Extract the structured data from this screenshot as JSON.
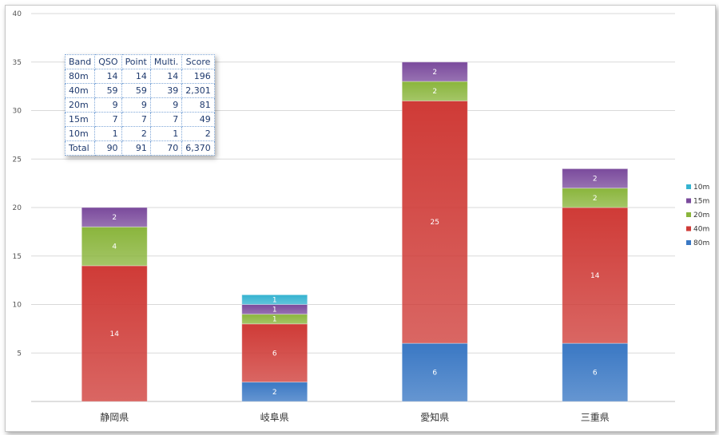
{
  "colors": {
    "80m": "#3a78c4",
    "40m": "#cf3b37",
    "20m": "#8ab53c",
    "15m": "#7a4a9c",
    "10m": "#35b3d0",
    "grid": "#d9d9d9"
  },
  "chart_data": {
    "type": "bar",
    "stacked": true,
    "categories": [
      "静岡県",
      "岐阜県",
      "愛知県",
      "三重県"
    ],
    "series": [
      {
        "name": "80m",
        "values": [
          0,
          2,
          6,
          6
        ]
      },
      {
        "name": "40m",
        "values": [
          14,
          6,
          25,
          14
        ]
      },
      {
        "name": "20m",
        "values": [
          4,
          1,
          2,
          2
        ]
      },
      {
        "name": "15m",
        "values": [
          2,
          1,
          2,
          2
        ]
      },
      {
        "name": "10m",
        "values": [
          0,
          1,
          0,
          0
        ]
      }
    ],
    "ylim": [
      0,
      40
    ],
    "yticks": [
      5,
      10,
      15,
      20,
      25,
      30,
      35,
      40
    ],
    "legend_order": [
      "10m",
      "15m",
      "20m",
      "40m",
      "80m"
    ],
    "legend_position": "right",
    "grid": true,
    "title": "",
    "xlabel": "",
    "ylabel": ""
  },
  "table": {
    "headers": [
      "Band",
      "QSO",
      "Point",
      "Multi.",
      "Score"
    ],
    "rows": [
      [
        "80m",
        "14",
        "14",
        "14",
        "196"
      ],
      [
        "40m",
        "59",
        "59",
        "39",
        "2,301"
      ],
      [
        "20m",
        "9",
        "9",
        "9",
        "81"
      ],
      [
        "15m",
        "7",
        "7",
        "7",
        "49"
      ],
      [
        "10m",
        "1",
        "2",
        "1",
        "2"
      ],
      [
        "Total",
        "90",
        "91",
        "70",
        "6,370"
      ]
    ]
  }
}
